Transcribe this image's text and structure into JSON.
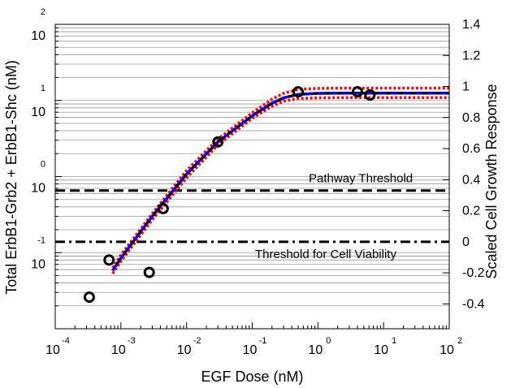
{
  "chart_data": {
    "type": "line",
    "x_axis": {
      "label": "EGF Dose (nM)",
      "scale": "log",
      "range": [
        0.0001,
        100
      ],
      "ticks": [
        {
          "base": "10",
          "exp": "-4",
          "value": 0.0001
        },
        {
          "base": "10",
          "exp": "-3",
          "value": 0.001
        },
        {
          "base": "10",
          "exp": "-2",
          "value": 0.01
        },
        {
          "base": "10",
          "exp": "-1",
          "value": 0.1
        },
        {
          "base": "10",
          "exp": "0",
          "value": 1
        },
        {
          "base": "10",
          "exp": "1",
          "value": 10
        },
        {
          "base": "10",
          "exp": "2",
          "value": 100
        }
      ]
    },
    "y_left_axis": {
      "label": "Total ErbB1-Grb2 + ErbB1-Shc (nM)",
      "scale": "log",
      "range": [
        0.01,
        100
      ],
      "ticks": [
        {
          "base": "10",
          "exp": "-1",
          "value": 0.1
        },
        {
          "base": "10",
          "exp": "0",
          "value": 1
        },
        {
          "base": "10",
          "exp": "1",
          "value": 10
        },
        {
          "base": "10",
          "exp": "2",
          "value": 100
        }
      ]
    },
    "y_right_axis": {
      "label": "Scaled Cell Growth Response",
      "scale": "linear",
      "range": [
        -0.56,
        1.4
      ],
      "ticks": [
        "-0.4",
        "-0.2",
        "0",
        "0.2",
        "0.4",
        "0.6",
        "0.8",
        "1",
        "1.2",
        "1.4"
      ]
    },
    "grid": "horizontal",
    "series": [
      {
        "kind": "scatter",
        "marker": "open-circle",
        "color": "#000000",
        "points": [
          {
            "x": 0.00033,
            "y": 0.026
          },
          {
            "x": 0.00066,
            "y": 0.08
          },
          {
            "x": 0.0027,
            "y": 0.055
          },
          {
            "x": 0.0044,
            "y": 0.38
          },
          {
            "x": 0.03,
            "y": 2.85
          },
          {
            "x": 0.5,
            "y": 13.0
          },
          {
            "x": 4.0,
            "y": 13.0
          },
          {
            "x": 6.2,
            "y": 11.8
          }
        ]
      },
      {
        "kind": "line",
        "style": "dotted",
        "color": "#ff0000",
        "x": [
          0.00075,
          0.001,
          0.003,
          0.01,
          0.03,
          0.1,
          0.2,
          0.3,
          0.5,
          1,
          3,
          10,
          100
        ],
        "y": [
          0.063,
          0.093,
          0.325,
          1.2,
          3.1,
          6.9,
          10.4,
          12.4,
          14.0,
          14.4,
          14.5,
          14.5,
          14.5
        ]
      },
      {
        "kind": "line",
        "style": "dotted",
        "color": "#ff0000",
        "x": [
          0.00075,
          0.001,
          0.003,
          0.01,
          0.03,
          0.1,
          0.2,
          0.3,
          0.5,
          1,
          3,
          10,
          100
        ],
        "y": [
          0.053,
          0.077,
          0.27,
          0.96,
          2.6,
          5.8,
          8.4,
          9.8,
          10.6,
          10.8,
          10.9,
          10.9,
          10.9
        ]
      },
      {
        "kind": "line",
        "style": "solid",
        "color": "#000000",
        "x": [
          0.00075,
          0.001,
          0.003,
          0.01,
          0.03,
          0.1,
          0.2,
          0.3,
          0.5,
          1,
          3,
          10,
          100
        ],
        "y": [
          0.058,
          0.085,
          0.3,
          1.08,
          2.85,
          6.3,
          9.2,
          10.8,
          12.0,
          12.4,
          12.5,
          12.5,
          12.5
        ]
      },
      {
        "kind": "line",
        "style": "dashed",
        "color": "#0000ff",
        "x": [
          0.00075,
          0.001,
          0.003,
          0.01,
          0.03,
          0.1,
          0.2,
          0.3,
          0.5,
          1,
          3,
          10,
          100
        ],
        "y": [
          0.058,
          0.085,
          0.3,
          1.08,
          2.85,
          6.3,
          9.2,
          10.8,
          12.0,
          12.4,
          12.5,
          12.5,
          12.5
        ]
      }
    ],
    "reference_lines": [
      {
        "name": "pathway-threshold",
        "style": "dashed",
        "right_y": 0.33,
        "label": "Pathway Threshold"
      },
      {
        "name": "viability-threshold",
        "style": "dashdot",
        "right_y": 0.0,
        "label": "Threshold for Cell Viability"
      }
    ]
  }
}
